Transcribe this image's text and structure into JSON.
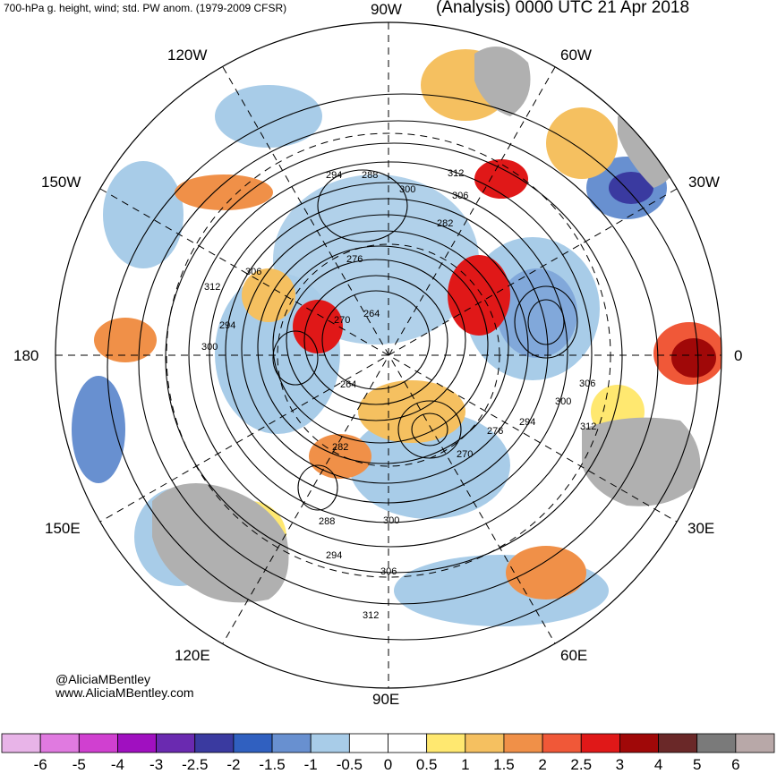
{
  "header": {
    "left_title": "700-hPa g. height, wind; std. PW anom. (1979-2009 CFSR)",
    "right_title": "(Analysis) 0000 UTC 21 Apr 2018"
  },
  "longitude_labels": {
    "top": "90W",
    "top_left": "120W",
    "top_right": "60W",
    "upper_left": "150W",
    "upper_right": "30W",
    "left": "180",
    "right": "0",
    "lower_left": "150E",
    "lower_right": "30E",
    "bottom_left": "120E",
    "bottom_right": "60E",
    "bottom": "90E"
  },
  "height_contour_labels": [
    "294",
    "288",
    "300",
    "312",
    "306",
    "282",
    "276",
    "306",
    "312",
    "294",
    "300",
    "270",
    "264",
    "264",
    "306",
    "300",
    "312",
    "276",
    "294",
    "282",
    "270",
    "288",
    "294",
    "300",
    "306",
    "312"
  ],
  "credits": {
    "handle": "@AliciaMBentley",
    "website": "www.AliciaMBentley.com"
  },
  "colorbar": {
    "tick_labels": [
      "-6",
      "-5",
      "-4",
      "-3",
      "-2.5",
      "-2",
      "-1.5",
      "-1",
      "-0.5",
      "0",
      "0.5",
      "1",
      "1.5",
      "2",
      "2.5",
      "3",
      "4",
      "5",
      "6"
    ],
    "colors": [
      "#e8b4e8",
      "#e07ae0",
      "#d040d0",
      "#a010c0",
      "#6a2ab0",
      "#3a3aa0",
      "#3060c0",
      "#6890d0",
      "#a8cce8",
      "#ffffff",
      "#ffffff",
      "#ffe870",
      "#f5c060",
      "#f09048",
      "#f05838",
      "#e01818",
      "#a00808",
      "#6a2828",
      "#7a7a7a",
      "#b8a8a8"
    ]
  }
}
